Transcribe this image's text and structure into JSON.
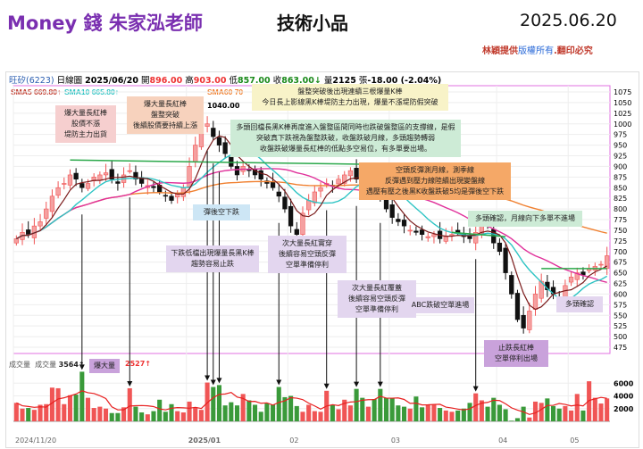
{
  "header": {
    "title": "Money 錢  朱家泓老師",
    "subtitle": "技術小品",
    "date": "2025.06.20",
    "copyright_a": "林穎提供",
    "copyright_b": "版權所有",
    "copyright_c": ".翻印必究"
  },
  "info": {
    "stock": "旺矽(6223)",
    "period": "日線圖",
    "date": "2025/06/20",
    "open_label": "開",
    "open": "896.00",
    "high_label": "高",
    "high": "903.00",
    "low_label": "低",
    "low": "857.00",
    "close_label": "收",
    "close": "863.00↓",
    "vol_label": "量",
    "vol": "2125",
    "chg_label": "張",
    "chg": "-18.00 (-2.04%)"
  },
  "smas": {
    "sma5": "SMA5 669.80↑",
    "sma10": "SMA10 665.80↑",
    "sma60": "SMA60 70"
  },
  "peak_label": "1040.00",
  "low_mark": "↓",
  "volume_panel": {
    "label": "成交量",
    "label2": "成交量",
    "value": "3564↑",
    "value2": "2527↑"
  },
  "notes": {
    "n1": "爆大量長紅棒\n股價不漲\n堤防主力出貨",
    "n2": "爆大量長紅棒\n盤整突破\n後續股價要持續上漲",
    "n3": "盤整突破後出現連續三根爆量K棒\n今日長上影線黑K棒堤防主力出現，爆量不漲堤防假突破",
    "n4": "多頭回檔長黑K棒再度進入盤整區間同時也跌破盤整區的支撐線，是假\n突破真下跌視為盤整跌破，收盤跌破月線，多頭趨勢轉弱\n收盤跌破爆量長紅棒的低點多空易位，有多單要出場。",
    "n5": "空頭反彈測月線，測季線\n反彈遇到壓力線陸續出現變盤線\n遇壓有壓之後黑K收盤跌破5均是彈後空下跌",
    "n6": "彈後空下跌",
    "n7": "多頭確認，月線向下多單不進場",
    "n8": "下跌低檔出現爆量長黑K棒\n趨勢容易止跌",
    "n9": "次大量長紅實穿\n後續容易空頭反彈\n空單準備停利",
    "n10": "次大量長紅覆蓋\n後續容易空頭反彈\n空單準備停利",
    "n11": "ABC跌破空單進場",
    "n12": "止跌長紅棒\n空單停利出場",
    "n13": "多頭確認",
    "n14": "爆大量"
  },
  "colors": {
    "up": "#f05555",
    "down": "#3a9a3a",
    "sma5": "#7a1a1a",
    "sma10": "#2ec4c4",
    "sma20": "#e0309a",
    "sma60": "#f08030",
    "vol_ma": "#e82020",
    "trend": "#2aa84a"
  },
  "chart_data": {
    "type": "candlestick",
    "y_ticks": [
      1075,
      1050,
      1025,
      1000,
      975,
      950,
      925,
      900,
      875,
      850,
      825,
      800,
      775,
      750,
      725,
      700,
      675,
      650,
      625,
      600,
      575,
      550,
      525,
      500,
      475
    ],
    "ylim": [
      465,
      1085
    ],
    "x_ticks": [
      "2024/11/20",
      "2025/01",
      "02",
      "03",
      "04",
      "05"
    ],
    "x_tick_index": [
      0,
      29,
      46,
      63,
      81,
      93
    ],
    "close": [
      730,
      745,
      740,
      760,
      770,
      800,
      830,
      850,
      860,
      880,
      870,
      850,
      860,
      875,
      880,
      885,
      870,
      860,
      880,
      890,
      870,
      860,
      855,
      850,
      840,
      830,
      820,
      835,
      850,
      900,
      950,
      990,
      1000,
      970,
      950,
      930,
      900,
      880,
      900,
      890,
      880,
      870,
      860,
      850,
      830,
      800,
      760,
      740,
      790,
      820,
      840,
      850,
      860,
      855,
      870,
      880,
      890,
      870,
      860,
      870,
      850,
      830,
      800,
      780,
      770,
      760,
      750,
      745,
      740,
      735,
      740,
      730,
      735,
      740,
      745,
      735,
      730,
      745,
      770,
      760,
      720,
      700,
      650,
      600,
      540,
      520,
      560,
      600,
      630,
      610,
      600,
      580,
      620,
      640,
      650,
      645,
      660,
      665,
      670,
      690
    ],
    "volume": [
      2900,
      2000,
      2100,
      1800,
      2600,
      2700,
      5300,
      5200,
      2700,
      4100,
      4200,
      7800,
      3700,
      2100,
      2300,
      2000,
      1300,
      1300,
      2200,
      5200,
      2300,
      1400,
      1100,
      1600,
      3400,
      1500,
      2700,
      1600,
      1400,
      3100,
      2200,
      1800,
      6100,
      5400,
      5700,
      2500,
      3000,
      2500,
      4300,
      3300,
      2600,
      1500,
      2800,
      2600,
      5400,
      3800,
      4000,
      2400,
      1500,
      2600,
      1600,
      1500,
      4800,
      2600,
      1900,
      3400,
      2500,
      5100,
      3700,
      2300,
      3500,
      5100,
      3700,
      3600,
      2500,
      2300,
      2000,
      3900,
      2200,
      2600,
      2600,
      2100,
      1700,
      1500,
      1700,
      2000,
      2900,
      4400,
      3300,
      2300,
      3700,
      2600,
      1900,
      100,
      500,
      2300,
      600,
      3100,
      2900,
      3600,
      2400,
      2000,
      2400,
      1700,
      4300,
      1700,
      6300,
      3700,
      2800,
      3600
    ],
    "volume_ticks": [
      2000,
      4000,
      6000
    ],
    "volume_lim": [
      0,
      8000
    ]
  }
}
